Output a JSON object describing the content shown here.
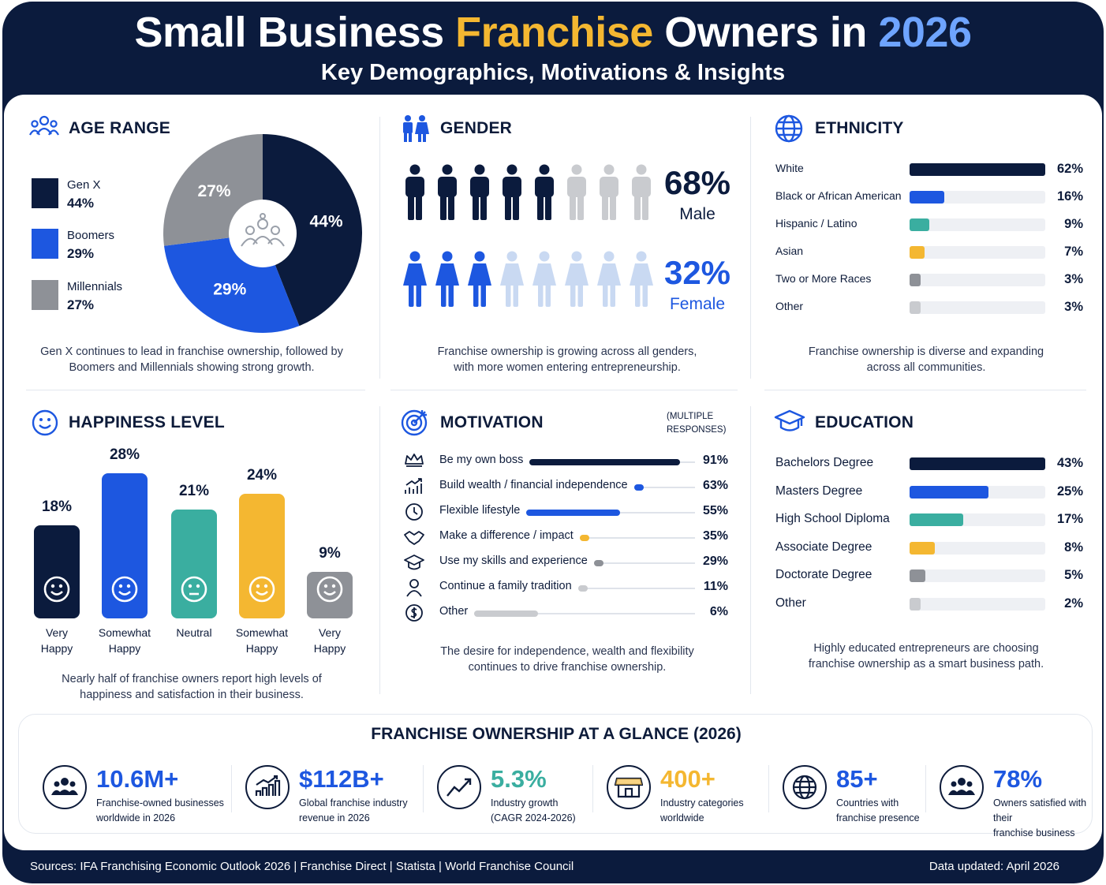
{
  "header": {
    "title_part1": "Small Business ",
    "title_highlight": "Franchise",
    "title_part2": " Owners in ",
    "title_year": "2026",
    "subtitle": "Key Demographics, Motivations & Insights"
  },
  "colors": {
    "navy": "#0b1b3d",
    "blue": "#1d57e0",
    "teal": "#3aaea0",
    "yellow": "#f4b731",
    "gray": "#8e9197",
    "lightgray": "#c9cbcf",
    "lightblue": "#c9d9f2",
    "accent_blue_text": "#1d57e0"
  },
  "age": {
    "title": "AGE RANGE",
    "icon": "people-group-icon",
    "caption_line1": "Gen X continues to lead in franchise ownership, followed by",
    "caption_line2": "Boomers and Millennials showing strong growth."
  },
  "gender": {
    "title": "GENDER",
    "icon": "man-woman-icon",
    "male_pct": "68%",
    "male_label": "Male",
    "female_pct": "32%",
    "female_label": "Female",
    "caption_line1": "Franchise ownership is growing across all genders,",
    "caption_line2": "with more women entering entrepreneurship."
  },
  "ethnicity": {
    "title": "ETHNICITY",
    "icon": "globe-icon",
    "caption_line1": "Franchise ownership is diverse and expanding",
    "caption_line2": "across all communities."
  },
  "happiness": {
    "title": "HAPPINESS LEVEL",
    "icon": "smiley-icon",
    "caption_line1": "Nearly half of franchise owners report high levels of",
    "caption_line2": "happiness and satisfaction in their business."
  },
  "motivation": {
    "title": "MOTIVATION",
    "note_line1": "(MULTIPLE",
    "note_line2": "RESPONSES)",
    "icon": "target-icon",
    "caption_line1": "The desire for independence, wealth and flexibility",
    "caption_line2": "continues to drive franchise ownership."
  },
  "education": {
    "title": "EDUCATION",
    "icon": "graduation-cap-icon",
    "caption_line1": "Highly educated entrepreneurs are choosing",
    "caption_line2": "franchise ownership as a smart business path."
  },
  "glance": {
    "title": "FRANCHISE OWNERSHIP AT A GLANCE (2026)",
    "kpis": [
      {
        "value": "10.6M+",
        "line1": "Franchise-owned businesses",
        "line2": "worldwide in 2026",
        "icon": "people-icon",
        "color": "#1d57e0"
      },
      {
        "value": "$112B+",
        "line1": "Global franchise industry",
        "line2": "revenue in 2026",
        "icon": "bar-growth-icon",
        "color": "#1d57e0"
      },
      {
        "value": "5.3%",
        "line1": "Industry growth",
        "line2": "(CAGR 2024-2026)",
        "icon": "trend-up-icon",
        "color": "#3aaea0"
      },
      {
        "value": "400+",
        "line1": "Industry categories",
        "line2": "worldwide",
        "icon": "storefront-icon",
        "color": "#f4b731"
      },
      {
        "value": "85+",
        "line1": "Countries with",
        "line2": "franchise presence",
        "icon": "globe-icon",
        "color": "#1d57e0"
      },
      {
        "value": "78%",
        "line1": "Owners satisfied with their",
        "line2": "franchise business",
        "icon": "people-icon",
        "color": "#1d57e0"
      }
    ]
  },
  "footer": {
    "sources": "Sources: IFA Franchising Economic Outlook 2026  |  Franchise Direct  |  Statista  |  World Franchise Council",
    "updated": "Data updated: April 2026"
  },
  "chart_data": [
    {
      "type": "pie",
      "title": "AGE RANGE",
      "categories": [
        "Gen X",
        "Boomers",
        "Millennials"
      ],
      "values": [
        44,
        29,
        27
      ],
      "labels": [
        "44%",
        "29%",
        "27%"
      ],
      "colors": [
        "#0b1b3d",
        "#1d57e0",
        "#8e9197"
      ],
      "legend": "left"
    },
    {
      "type": "bar",
      "title": "GENDER",
      "categories": [
        "Male",
        "Female"
      ],
      "values": [
        68,
        32
      ],
      "labels": [
        "68%",
        "32%"
      ]
    },
    {
      "type": "bar",
      "orientation": "horizontal",
      "title": "ETHNICITY",
      "categories": [
        "White",
        "Black or African American",
        "Hispanic / Latino",
        "Asian",
        "Two or More Races",
        "Other"
      ],
      "values": [
        62,
        16,
        9,
        7,
        3,
        3
      ],
      "labels": [
        "62%",
        "16%",
        "9%",
        "7%",
        "3%",
        "3%"
      ],
      "colors": [
        "#0b1b3d",
        "#1d57e0",
        "#3aaea0",
        "#f4b731",
        "#8e9197",
        "#c9cbcf"
      ],
      "xlim": [
        0,
        62
      ]
    },
    {
      "type": "bar",
      "title": "HAPPINESS LEVEL",
      "categories": [
        "Very Happy",
        "Somewhat Happy",
        "Neutral",
        "Somewhat Happy",
        "Very Happy"
      ],
      "values": [
        18,
        28,
        21,
        24,
        9
      ],
      "labels": [
        "18%",
        "28%",
        "21%",
        "24%",
        "9%"
      ],
      "colors": [
        "#0b1b3d",
        "#1d57e0",
        "#3aaea0",
        "#f4b731",
        "#8e9197"
      ],
      "ylim": [
        0,
        28
      ]
    },
    {
      "type": "bar",
      "orientation": "horizontal",
      "title": "MOTIVATION",
      "categories": [
        "Be my own boss",
        "Build wealth / financial independence",
        "Flexible lifestyle",
        "Make a difference / impact",
        "Use my skills and experience",
        "Continue a family tradition",
        "Other"
      ],
      "values": [
        91,
        63,
        55,
        35,
        29,
        11,
        6
      ],
      "labels": [
        "91%",
        "63%",
        "55%",
        "35%",
        "29%",
        "11%",
        "6%"
      ],
      "colors": [
        "#0b1b3d",
        "#1d57e0",
        "#1d57e0",
        "#f4b731",
        "#8e9197",
        "#c9cbcf",
        "#c9cbcf"
      ],
      "icons": [
        "crown-icon",
        "growth-chart-icon",
        "clock-icon",
        "handshake-icon",
        "graduation-cap-icon",
        "person-icon",
        "dollar-coin-icon"
      ]
    },
    {
      "type": "bar",
      "orientation": "horizontal",
      "title": "EDUCATION",
      "categories": [
        "Bachelors Degree",
        "Masters Degree",
        "High School Diploma",
        "Associate Degree",
        "Doctorate Degree",
        "Other"
      ],
      "values": [
        43,
        25,
        17,
        8,
        5,
        2
      ],
      "labels": [
        "43%",
        "25%",
        "17%",
        "8%",
        "5%",
        "2%"
      ],
      "colors": [
        "#0b1b3d",
        "#1d57e0",
        "#3aaea0",
        "#f4b731",
        "#8e9197",
        "#c9cbcf"
      ],
      "xlim": [
        0,
        43
      ]
    }
  ]
}
